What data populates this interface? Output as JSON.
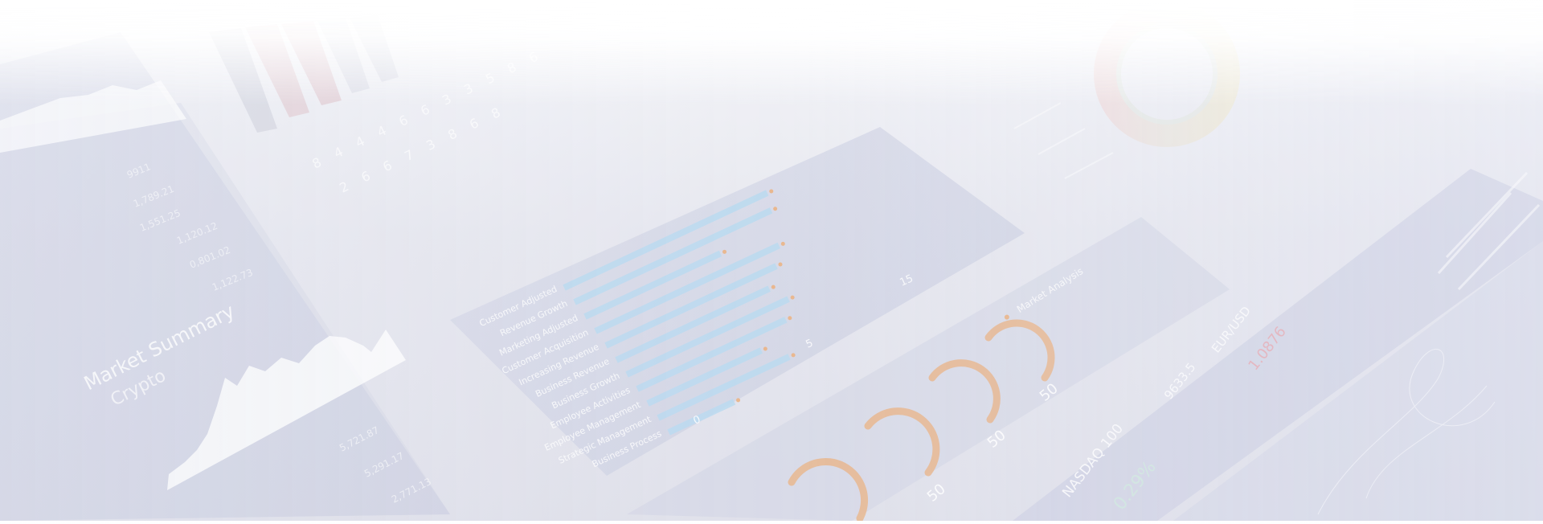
{
  "market": {
    "title": "Market Summary",
    "subtitle": "Crypto",
    "upper_tickers": [
      {
        "value": "9911"
      },
      {
        "value": "1,789.21"
      },
      {
        "value": "1,551.25"
      },
      {
        "value": "1,120.12"
      },
      {
        "value": "0,801.02"
      },
      {
        "value": "1,122.73"
      }
    ],
    "lower_values": [
      "5,721.87",
      "5,291.17",
      "2,771.13"
    ]
  },
  "top_digits": {
    "row1": [
      "8",
      "4",
      "4",
      "4",
      "6",
      "6",
      "3",
      "3",
      "5",
      "8",
      "6"
    ],
    "row2": [
      "2",
      "6",
      "6",
      "7",
      "3",
      "8",
      "6",
      "8"
    ]
  },
  "bar_panel": {
    "items": [
      {
        "label": "Customer Adjusted",
        "value": 0.93
      },
      {
        "label": "Revenue Growth",
        "value": 0.9
      },
      {
        "label": "Marketing Adjusted",
        "value": 0.62
      },
      {
        "label": "Customer Acquisition",
        "value": 0.84
      },
      {
        "label": "Increasing Revenue",
        "value": 0.78
      },
      {
        "label": "Business Revenue",
        "value": 0.7
      },
      {
        "label": "Business Growth",
        "value": 0.74
      },
      {
        "label": "Employee Activities",
        "value": 0.68
      },
      {
        "label": "Employee Management",
        "value": 0.52
      },
      {
        "label": "Strategic Management",
        "value": 0.6
      },
      {
        "label": "Business Process",
        "value": 0.3
      }
    ],
    "axis_ticks": [
      "0",
      "5",
      "15"
    ]
  },
  "gauges": {
    "heading": "Market Analysis",
    "values": [
      "50",
      "50",
      "50"
    ]
  },
  "ticker_strip": {
    "index_label": "NASDAQ 100",
    "index_change": "0.29%",
    "value_a": "9633.5",
    "pair_label": "EUR/USD",
    "pair_value": "1.0876"
  },
  "colors": {
    "bar": "#b8d9f0",
    "gauge": "#e8b48a",
    "accent_red": "#e07a7a",
    "panel": "#d2d6e6"
  }
}
